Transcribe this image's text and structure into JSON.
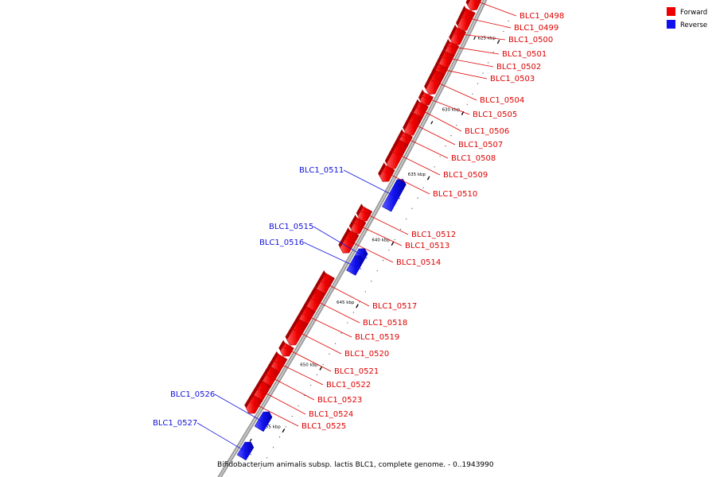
{
  "caption": "Bifidobacterium animalis subsp. lactis BLC1, complete genome. - 0..1943990",
  "legend": [
    {
      "label": "Forward",
      "color": "#ee0000"
    },
    {
      "label": "Reverse",
      "color": "#1111ee"
    }
  ],
  "ticks": [
    "625 kbp",
    "630 kbp",
    "635 kbp",
    "640 kbp",
    "645 kbp",
    "650 kbp",
    "655 kbp"
  ],
  "genes": [
    {
      "id": "BLC1_0498",
      "strand": "forward"
    },
    {
      "id": "BLC1_0499",
      "strand": "forward"
    },
    {
      "id": "BLC1_0500",
      "strand": "forward"
    },
    {
      "id": "BLC1_0501",
      "strand": "forward"
    },
    {
      "id": "BLC1_0502",
      "strand": "forward"
    },
    {
      "id": "BLC1_0503",
      "strand": "forward"
    },
    {
      "id": "BLC1_0504",
      "strand": "forward"
    },
    {
      "id": "BLC1_0505",
      "strand": "forward"
    },
    {
      "id": "BLC1_0506",
      "strand": "forward"
    },
    {
      "id": "BLC1_0507",
      "strand": "forward"
    },
    {
      "id": "BLC1_0508",
      "strand": "forward"
    },
    {
      "id": "BLC1_0509",
      "strand": "forward"
    },
    {
      "id": "BLC1_0510",
      "strand": "forward"
    },
    {
      "id": "BLC1_0511",
      "strand": "reverse"
    },
    {
      "id": "BLC1_0512",
      "strand": "forward"
    },
    {
      "id": "BLC1_0513",
      "strand": "forward"
    },
    {
      "id": "BLC1_0514",
      "strand": "forward"
    },
    {
      "id": "BLC1_0515",
      "strand": "reverse"
    },
    {
      "id": "BLC1_0516",
      "strand": "reverse"
    },
    {
      "id": "BLC1_0517",
      "strand": "forward"
    },
    {
      "id": "BLC1_0518",
      "strand": "forward"
    },
    {
      "id": "BLC1_0519",
      "strand": "forward"
    },
    {
      "id": "BLC1_0520",
      "strand": "forward"
    },
    {
      "id": "BLC1_0521",
      "strand": "forward"
    },
    {
      "id": "BLC1_0522",
      "strand": "forward"
    },
    {
      "id": "BLC1_0523",
      "strand": "forward"
    },
    {
      "id": "BLC1_0524",
      "strand": "forward"
    },
    {
      "id": "BLC1_0525",
      "strand": "forward"
    },
    {
      "id": "BLC1_0526",
      "strand": "reverse"
    },
    {
      "id": "BLC1_0527",
      "strand": "reverse"
    }
  ]
}
